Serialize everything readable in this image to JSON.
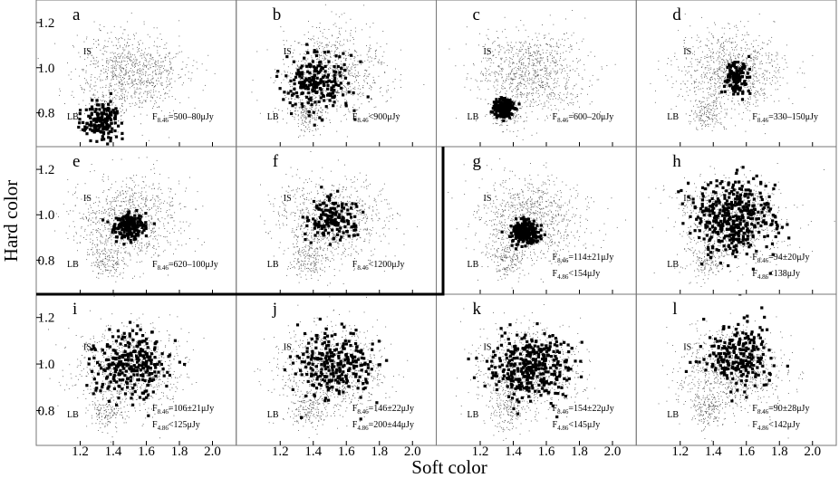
{
  "chart_data": {
    "type": "scatter",
    "xlabel": "Soft color",
    "ylabel": "Hard color",
    "xlim": [
      1.0,
      2.1
    ],
    "ylim": [
      0.65,
      1.3
    ],
    "x_ticks": [
      "1.2",
      "1.4",
      "1.6",
      "1.8",
      "2.0"
    ],
    "y_ticks": [
      "0.8",
      "1.0",
      "1.2"
    ],
    "region_labels": {
      "is": "IS",
      "lb": "LB"
    },
    "background_population": {
      "is_center": [
        1.5,
        0.98
      ],
      "is_spread": [
        0.16,
        0.09
      ],
      "lb_center": [
        1.36,
        0.8
      ],
      "lb_spread": [
        0.05,
        0.04
      ]
    },
    "panels": [
      {
        "label": "a",
        "annotations": [
          "F8.46=500–80μJy"
        ],
        "center": [
          1.33,
          0.76
        ],
        "spread": [
          0.06,
          0.04
        ],
        "count": 160
      },
      {
        "label": "b",
        "annotations": [
          "F8.46<900μJy"
        ],
        "center": [
          1.43,
          0.94
        ],
        "spread": [
          0.1,
          0.07
        ],
        "count": 220
      },
      {
        "label": "c",
        "annotations": [
          "F8.46=600–20μJy"
        ],
        "center": [
          1.34,
          0.82
        ],
        "spread": [
          0.03,
          0.02
        ],
        "count": 200
      },
      {
        "label": "d",
        "annotations": [
          "F8.46=330–150μJy"
        ],
        "center": [
          1.54,
          0.96
        ],
        "spread": [
          0.04,
          0.04
        ],
        "count": 120
      },
      {
        "label": "e",
        "annotations": [
          "F8.46=620–100μJy"
        ],
        "center": [
          1.5,
          0.95
        ],
        "spread": [
          0.05,
          0.03
        ],
        "count": 200
      },
      {
        "label": "f",
        "annotations": [
          "F8.46<1200μJy"
        ],
        "center": [
          1.52,
          0.98
        ],
        "spread": [
          0.07,
          0.05
        ],
        "count": 160
      },
      {
        "label": "g",
        "annotations": [
          "F8.46=114±21μJy",
          "F4.86<154μJy"
        ],
        "center": [
          1.47,
          0.92
        ],
        "spread": [
          0.04,
          0.025
        ],
        "count": 220
      },
      {
        "label": "h",
        "annotations": [
          "F8.46=94±20μJy",
          "F4.86<138μJy"
        ],
        "center": [
          1.53,
          0.99
        ],
        "spread": [
          0.13,
          0.08
        ],
        "count": 420
      },
      {
        "label": "i",
        "annotations": [
          "F8.46=106±21μJy",
          "F4.86<125μJy"
        ],
        "center": [
          1.52,
          1.0
        ],
        "spread": [
          0.12,
          0.07
        ],
        "count": 280
      },
      {
        "label": "j",
        "annotations": [
          "F8.46=146±22μJy",
          "F4.86=200±44μJy"
        ],
        "center": [
          1.52,
          1.0
        ],
        "spread": [
          0.12,
          0.07
        ],
        "count": 260
      },
      {
        "label": "k",
        "annotations": [
          "F8.46=154±22μJy",
          "F4.86<145μJy"
        ],
        "center": [
          1.52,
          0.99
        ],
        "spread": [
          0.12,
          0.07
        ],
        "count": 360
      },
      {
        "label": "l",
        "annotations": [
          "F8.46=90±28μJy",
          "F4.86<142μJy"
        ],
        "center": [
          1.55,
          1.03
        ],
        "spread": [
          0.1,
          0.07
        ],
        "count": 240
      }
    ]
  }
}
